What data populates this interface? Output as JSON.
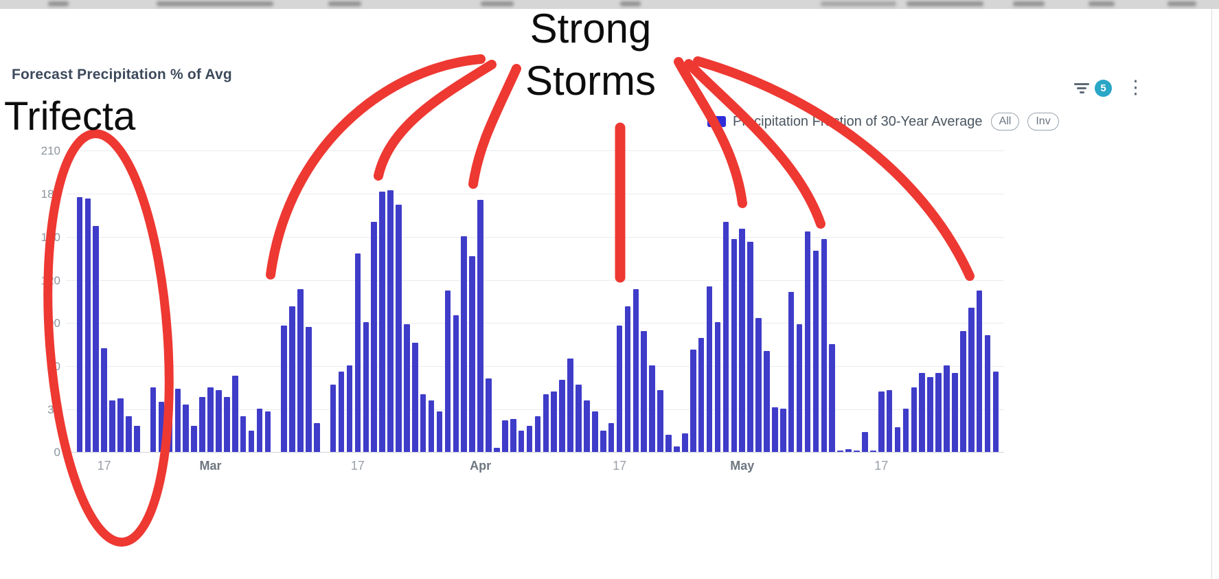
{
  "header": {
    "title": "Forecast Precipitation % of Avg",
    "filter_badge_count": "5",
    "kebab_glyph": "⋮"
  },
  "legend": {
    "label": "Precipitation Fraction of 30-Year Average",
    "all_label": "All",
    "inv_label": "Inv"
  },
  "annotations": {
    "trifecta": "Trifecta",
    "strong_line1": "Strong",
    "strong_line2": "Storms"
  },
  "colors": {
    "bar": "#3f3cc9",
    "legend_swatch": "#2f2cd8",
    "annotation_red": "#ee3832",
    "badge_teal": "#2aa6c6"
  },
  "chart_data": {
    "type": "bar",
    "title": "Forecast Precipitation % of Avg",
    "ylabel": "",
    "xlabel": "",
    "ylim": [
      0,
      210
    ],
    "y_ticks": [
      0,
      30,
      60,
      90,
      120,
      150,
      180,
      210
    ],
    "grid": true,
    "legend_position": "top-right",
    "x_ticks": [
      {
        "index": 3,
        "label": "17"
      },
      {
        "index": 16,
        "label": "Mar"
      },
      {
        "index": 34,
        "label": "17"
      },
      {
        "index": 49,
        "label": "Apr"
      },
      {
        "index": 66,
        "label": "17"
      },
      {
        "index": 81,
        "label": "May"
      },
      {
        "index": 98,
        "label": "17"
      }
    ],
    "series": [
      {
        "name": "Precipitation Fraction of 30-Year Average",
        "values": [
          177,
          176,
          157,
          72,
          36,
          37,
          25,
          18,
          0,
          45,
          35,
          43,
          44,
          33,
          18,
          38,
          45,
          43,
          38,
          53,
          25,
          15,
          30,
          28,
          0,
          88,
          101,
          113,
          87,
          20,
          0,
          47,
          56,
          60,
          138,
          90,
          160,
          181,
          182,
          172,
          89,
          76,
          40,
          36,
          28,
          112,
          95,
          150,
          136,
          175,
          51,
          3,
          22,
          23,
          15,
          18,
          25,
          40,
          42,
          50,
          65,
          47,
          36,
          28,
          15,
          20,
          88,
          101,
          113,
          84,
          60,
          43,
          12,
          4,
          13,
          71,
          79,
          115,
          90,
          160,
          148,
          155,
          146,
          93,
          70,
          31,
          30,
          111,
          89,
          153,
          140,
          148,
          75,
          1,
          2,
          1,
          14,
          1,
          42,
          43,
          17,
          30,
          45,
          55,
          52,
          55,
          60,
          55,
          84,
          100,
          112,
          81,
          56
        ]
      }
    ]
  }
}
